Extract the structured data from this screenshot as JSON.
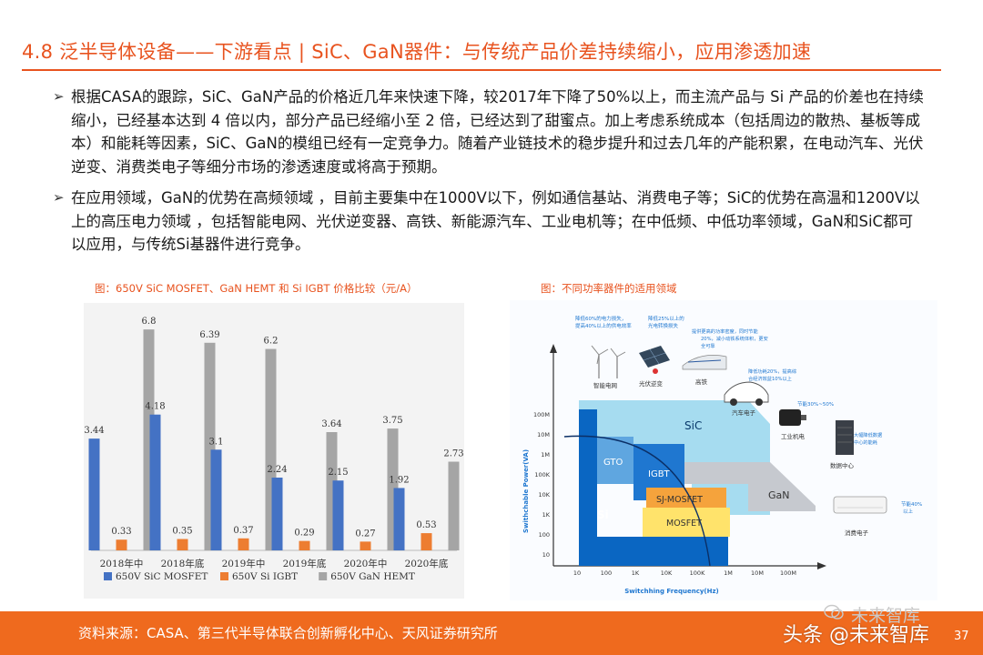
{
  "title": "4.8 泛半导体设备——下游看点 | SiC、GaN器件：与传统产品价差持续缩小，应用渗透加速",
  "bullets": [
    "根据CASA的跟踪，SiC、GaN产品的价格近几年来快速下降，较2017年下降了50%以上，而主流产品与 Si 产品的价差也在持续缩小，已经基本达到 4 倍以内，部分产品已经缩小至 2 倍，已经达到了甜蜜点。加上考虑系统成本（包括周边的散热、基板等成本）和能耗等因素，SiC、GaN的模组已经有一定竞争力。随着产业链技术的稳步提升和过去几年的产能积累，在电动汽车、光伏逆变、消费类电子等细分市场的渗透速度或将高于预期。",
    "在应用领域，GaN的优势在高频领域 ，目前主要集中在1000V以下，例如通信基站、消费电子等；SiC的优势在高温和1200V以上的高压电力领域 ，包括智能电网、光伏逆变器、高铁、新能源汽车、工业电机等；在中低频、中低功率领域，GaN和SiC都可以应用，与传统Si基器件进行竞争。"
  ],
  "chart1_caption": "图：650V SiC MOSFET、GaN HEMT 和 Si IGBT 价格比较（元/A）",
  "chart_data": {
    "type": "bar",
    "title": "",
    "categories": [
      "2018年中",
      "2018年底",
      "2019年中",
      "2019年底",
      "2020年中",
      "2020年底"
    ],
    "series": [
      {
        "name": "650V SiC MOSFET",
        "color": "#4472c4",
        "values": [
          3.44,
          4.18,
          3.1,
          2.24,
          2.15,
          1.92
        ]
      },
      {
        "name": "650V Si IGBT",
        "color": "#ed7d31",
        "values": [
          0.33,
          0.35,
          0.37,
          0.29,
          0.27,
          0.53
        ]
      },
      {
        "name": "650V GaN HEMT",
        "color": "#a5a5a5",
        "values": [
          6.8,
          6.39,
          6.2,
          3.64,
          3.75,
          2.73
        ]
      }
    ],
    "value_labels": [
      [
        "3.44",
        "4.18",
        "3.1",
        "2.24",
        "2.15",
        "1.92"
      ],
      [
        "0.33",
        "0.35",
        "0.37",
        "0.29",
        "0.27",
        "0.53"
      ],
      [
        "6.8",
        "6.39",
        "6.2",
        "3.64",
        "3.75",
        "2.73"
      ]
    ],
    "ylim": [
      0,
      7
    ],
    "legend": "bottom",
    "grid": false
  },
  "chart2_caption": "图：不同功率器件的适用领域",
  "diagram": {
    "y_axis_label": "Swithchable Power(VA)",
    "x_axis_label": "Switchhing Frequency(Hz)",
    "y_ticks": [
      "100M",
      "10M",
      "1M",
      "100K",
      "10K",
      "1K",
      "100",
      "10"
    ],
    "x_ticks": [
      "10",
      "100",
      "1K",
      "10K",
      "100K",
      "1M",
      "10M",
      "100M"
    ],
    "regions": {
      "sic": "SiC",
      "gto": "GTO",
      "igbt": "IGBT",
      "sj": "SJ-MOSFET",
      "mosfet": "MOSFET",
      "gan": "GaN",
      "si": "Si"
    },
    "apps": {
      "grid": "智能电网",
      "pv": "光伏逆变",
      "rail": "高铁",
      "ev": "汽车电子",
      "motor": "工业机电",
      "dc": "数据中心",
      "consumer": "消费电子"
    },
    "notes": {
      "grid": "降低60%的电力损失，提高40%以上的供电效率",
      "pv": "降低25%以上的光电转换损失",
      "rail": "提供更高的功率密度，同时节能20%，减小动铁系统体积，更安全可靠",
      "ev": "降低功耗20%，提高综合经济效益10%以上",
      "motor": "节能30%~50%",
      "dc": "大幅降低数据中心的能耗",
      "consumer": "节能40%以上"
    }
  },
  "footer": {
    "source": "资料来源：CASA、第三代半导体联合创新孵化中心、天风证券研究所",
    "watermark_brand": "未来智库",
    "watermark_main": "头条 @未来智库",
    "page": "37"
  }
}
